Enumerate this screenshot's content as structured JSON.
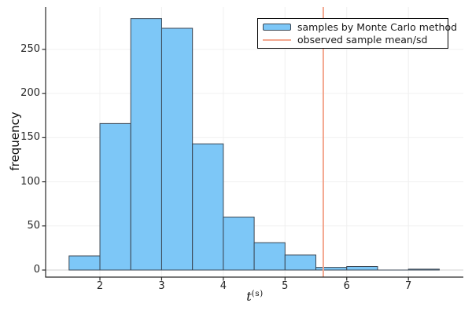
{
  "chart_data": {
    "type": "bar",
    "subtype": "histogram",
    "title": "",
    "xlabel_base": "t",
    "xlabel_sup": "(s)",
    "ylabel": "frequency",
    "bin_edges": [
      1.5,
      2.0,
      2.5,
      3.0,
      3.5,
      4.0,
      4.5,
      5.0,
      5.5,
      6.0,
      6.5,
      7.0,
      7.5
    ],
    "counts": [
      16,
      166,
      285,
      274,
      143,
      60,
      31,
      17,
      3,
      4,
      0,
      1
    ],
    "x_ticks": [
      2,
      3,
      4,
      5,
      6,
      7
    ],
    "y_ticks": [
      0,
      50,
      100,
      150,
      200,
      250
    ],
    "xlim": [
      1.12,
      7.89
    ],
    "ylim": [
      -8,
      298
    ],
    "grid": true,
    "vline_x": 5.62,
    "legend_position": "top-right",
    "legend": {
      "entries": [
        {
          "label": "samples by Monte Carlo method",
          "marker": "patch"
        },
        {
          "label": "observed sample mean/sd",
          "marker": "line"
        }
      ]
    },
    "colors": {
      "bar_fill": "#7dc7f7",
      "bar_stroke": "#3b4754",
      "vline": "#f3a78f",
      "grid": "#f0f0f0",
      "zero_line": "#d2d2d2",
      "axis": "#2a2a2a",
      "tick_text": "#262626",
      "legend_border": "#000000",
      "background": "#ffffff"
    }
  }
}
